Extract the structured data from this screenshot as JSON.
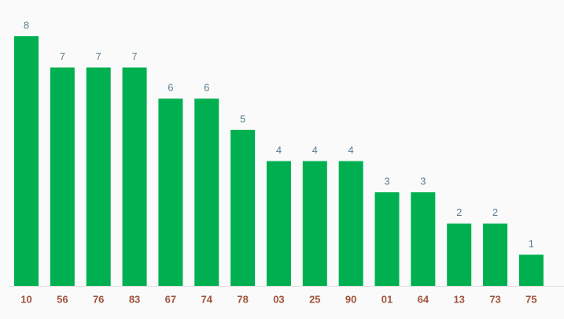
{
  "chart_data": {
    "type": "bar",
    "categories": [
      "10",
      "56",
      "76",
      "83",
      "67",
      "74",
      "78",
      "03",
      "25",
      "90",
      "01",
      "64",
      "13",
      "73",
      "75"
    ],
    "values": [
      8,
      7,
      7,
      7,
      6,
      6,
      5,
      4,
      4,
      4,
      3,
      3,
      2,
      2,
      1
    ],
    "color": "#00b050"
  }
}
